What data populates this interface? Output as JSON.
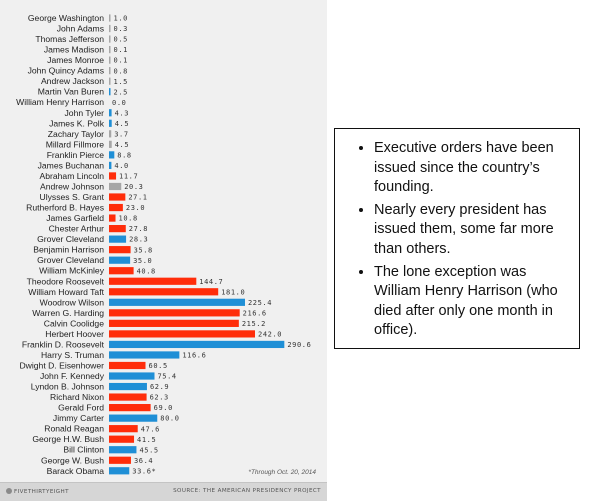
{
  "chart_data": {
    "type": "bar",
    "orientation": "horizontal",
    "categories": [
      "George Washington",
      "John Adams",
      "Thomas Jefferson",
      "James Madison",
      "James Monroe",
      "John Quincy Adams",
      "Andrew Jackson",
      "Martin Van Buren",
      "William Henry Harrison",
      "John Tyler",
      "James K. Polk",
      "Zachary Taylor",
      "Millard Fillmore",
      "Franklin Pierce",
      "James Buchanan",
      "Abraham Lincoln",
      "Andrew Johnson",
      "Ulysses S. Grant",
      "Rutherford B. Hayes",
      "James Garfield",
      "Chester Arthur",
      "Grover Cleveland",
      "Benjamin Harrison",
      "Grover Cleveland",
      "William McKinley",
      "Theodore Roosevelt",
      "William Howard Taft",
      "Woodrow Wilson",
      "Warren G. Harding",
      "Calvin Coolidge",
      "Herbert Hoover",
      "Franklin D. Roosevelt",
      "Harry S. Truman",
      "Dwight D. Eisenhower",
      "John F. Kennedy",
      "Lyndon B. Johnson",
      "Richard Nixon",
      "Gerald Ford",
      "Jimmy Carter",
      "Ronald Reagan",
      "George H.W. Bush",
      "Bill Clinton",
      "George W. Bush",
      "Barack Obama"
    ],
    "values": [
      1.0,
      0.3,
      0.5,
      0.1,
      0.1,
      0.8,
      1.5,
      2.5,
      0.0,
      4.3,
      4.5,
      3.7,
      4.5,
      8.8,
      4.0,
      11.7,
      20.3,
      27.1,
      23.0,
      10.8,
      27.8,
      28.3,
      35.8,
      35.0,
      40.8,
      144.7,
      181.0,
      225.4,
      216.6,
      215.2,
      242.0,
      290.6,
      116.6,
      60.5,
      75.4,
      62.9,
      62.3,
      69.0,
      80.0,
      47.6,
      41.5,
      45.5,
      36.4,
      33.6
    ],
    "value_labels": [
      "1.0",
      "0.3",
      "0.5",
      "0.1",
      "0.1",
      "0.8",
      "1.5",
      "2.5",
      "0.0",
      "4.3",
      "4.5",
      "3.7",
      "4.5",
      "8.8",
      "4.0",
      "11.7",
      "20.3",
      "27.1",
      "23.0",
      "10.8",
      "27.8",
      "28.3",
      "35.8",
      "35.0",
      "40.8",
      "144.7",
      "181.0",
      "225.4",
      "216.6",
      "215.2",
      "242.0",
      "290.6",
      "116.6",
      "60.5",
      "75.4",
      "62.9",
      "62.3",
      "69.0",
      "80.0",
      "47.6",
      "41.5",
      "45.5",
      "36.4",
      "33.6*"
    ],
    "party_colors": [
      "gray",
      "gray",
      "gray",
      "gray",
      "gray",
      "gray",
      "gray",
      "blue",
      "gray",
      "blue",
      "blue",
      "gray",
      "gray",
      "blue",
      "blue",
      "red",
      "gray",
      "red",
      "red",
      "red",
      "red",
      "blue",
      "red",
      "blue",
      "red",
      "red",
      "red",
      "blue",
      "red",
      "red",
      "red",
      "blue",
      "blue",
      "red",
      "blue",
      "blue",
      "red",
      "red",
      "blue",
      "red",
      "red",
      "blue",
      "red",
      "blue"
    ],
    "colors": {
      "red": "#ff2d0a",
      "blue": "#1f8fd6",
      "gray": "#a6a6a6"
    },
    "xlim": [
      0,
      300
    ],
    "grid": false,
    "note": "*Through Oct. 20, 2014"
  },
  "footer": {
    "brand": "FIVETHIRTYEIGHT",
    "source": "SOURCE: THE AMERICAN PRESIDENCY PROJECT"
  },
  "notes": {
    "bullets": [
      "Executive orders have been issued since the country’s founding.",
      "Nearly every president has issued them, some far more than others.",
      "The lone exception was William Henry Harrison (who died after only one month in office)."
    ]
  }
}
